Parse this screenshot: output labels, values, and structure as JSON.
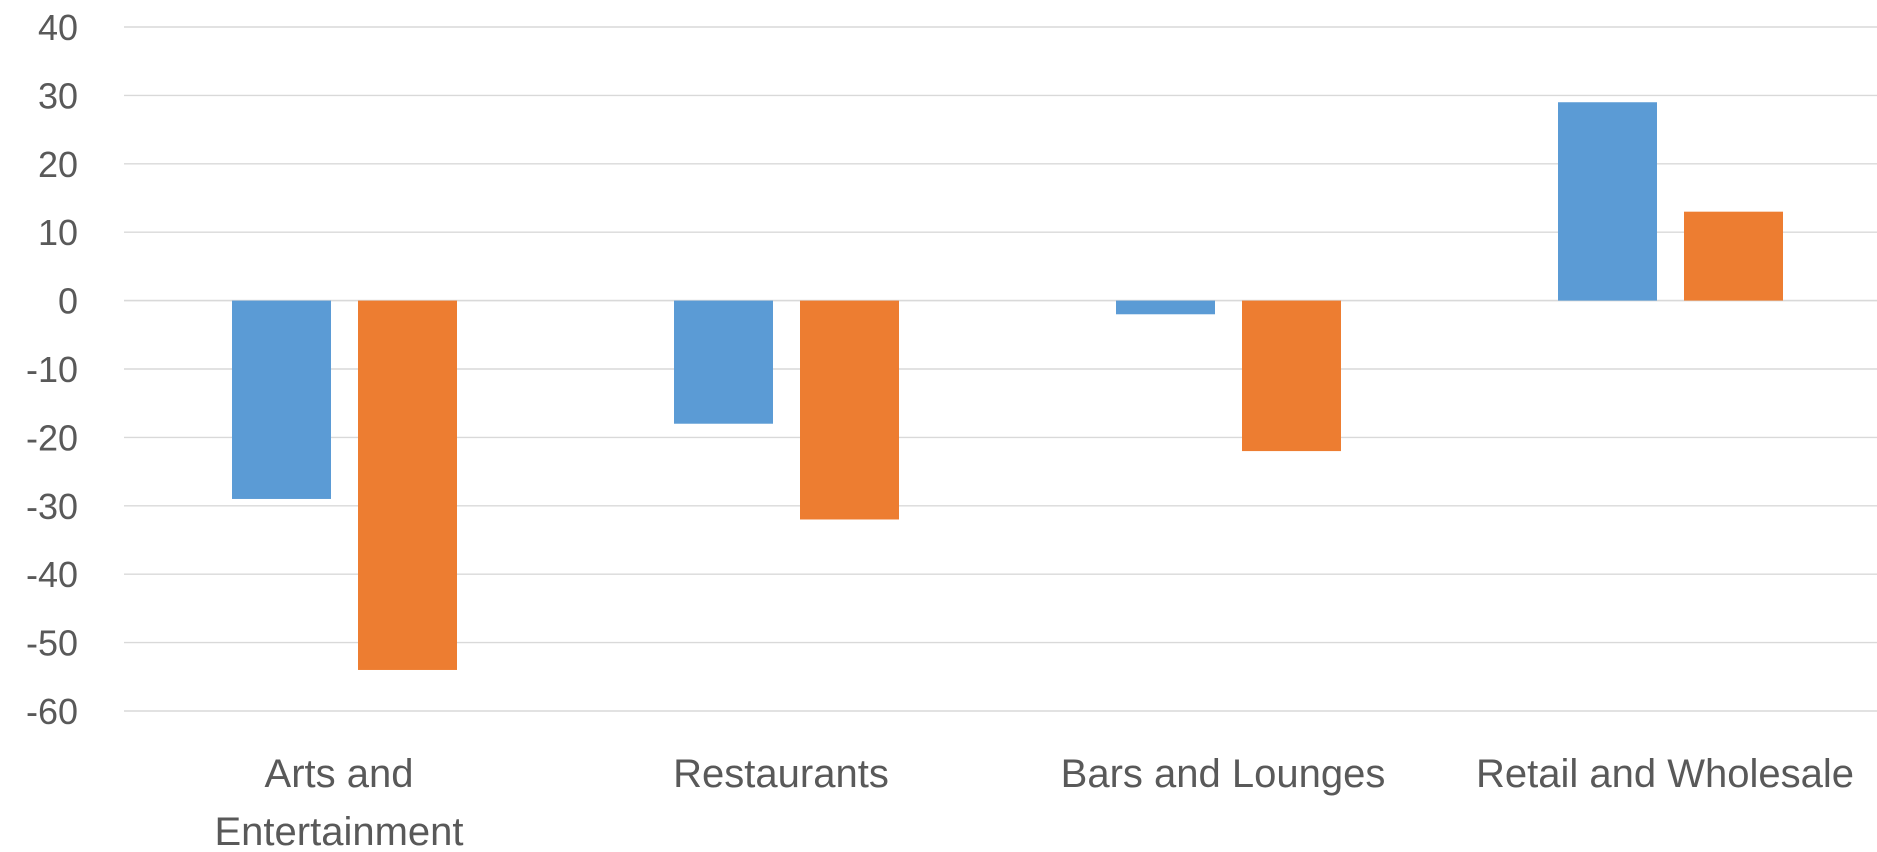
{
  "chart_data": {
    "type": "bar",
    "title": "",
    "xlabel": "",
    "ylabel": "",
    "categories": [
      [
        "Arts and",
        "Entertainment"
      ],
      [
        "Restaurants"
      ],
      [
        "Bars and Lounges"
      ],
      [
        "Retail and Wholesale"
      ]
    ],
    "series": [
      {
        "values": [
          -29,
          -18,
          -2,
          29
        ],
        "color": "#5B9BD5"
      },
      {
        "values": [
          -54,
          -32,
          -22,
          13
        ],
        "color": "#ED7D31"
      }
    ],
    "ylim": [
      -60,
      40
    ],
    "yticks": [
      40,
      30,
      20,
      10,
      0,
      -10,
      -20,
      -30,
      -40,
      -50,
      -60
    ],
    "grid": true,
    "legend": "none"
  },
  "colors": {
    "gridline": "#D9D9D9",
    "text": "#595959"
  }
}
